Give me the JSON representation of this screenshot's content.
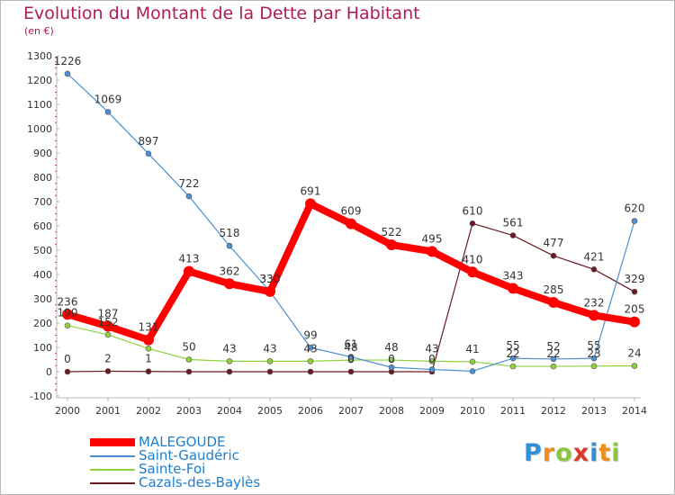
{
  "title": "Evolution du Montant de la Dette par Habitant",
  "subtitle": "(en €)",
  "logo": {
    "text": "Proxiti",
    "letters": [
      "P",
      "r",
      "o",
      "x",
      "i",
      "t",
      "i"
    ],
    "colors": [
      "#2f8fd8",
      "#f28c1e",
      "#8cc63f",
      "#d93a2b",
      "#2f8fd8",
      "#f28c1e",
      "#8cc63f"
    ]
  },
  "chart_data": {
    "type": "line",
    "title": "Evolution du Montant de la Dette par Habitant",
    "ylabel": "(en €)",
    "xlabel": "",
    "x": [
      "2000",
      "2001",
      "2002",
      "2003",
      "2004",
      "2005",
      "2006",
      "2007",
      "2008",
      "2009",
      "2010",
      "2011",
      "2012",
      "2013",
      "2014"
    ],
    "ylim": [
      -100,
      1300
    ],
    "yticks": [
      -100,
      0,
      100,
      200,
      300,
      400,
      500,
      600,
      700,
      800,
      900,
      1000,
      1100,
      1200,
      1300
    ],
    "grid": false,
    "legend_position": "bottom-left",
    "series": [
      {
        "name": "MALEGOUDE",
        "color": "#ff0000",
        "values": [
          236,
          187,
          131,
          413,
          362,
          330,
          691,
          609,
          522,
          495,
          410,
          343,
          285,
          232,
          205
        ],
        "labels": [
          "236",
          "187",
          "131",
          "413",
          "362",
          "330",
          "691",
          "609",
          "522",
          "495",
          "410",
          "343",
          "285",
          "232",
          "205"
        ]
      },
      {
        "name": "Saint-Gaudéric",
        "color": "#4a90d2",
        "values": [
          1226,
          1069,
          897,
          722,
          518,
          330,
          99,
          61,
          18,
          9,
          2,
          55,
          52,
          55,
          620
        ],
        "labels": [
          "1226",
          "1069",
          "897",
          "722",
          "518",
          "330",
          "99",
          "61",
          "",
          "",
          "",
          "55",
          "52",
          "55",
          "620"
        ]
      },
      {
        "name": "Sainte-Foi",
        "color": "#8ed23b",
        "values": [
          190,
          152,
          95,
          50,
          43,
          43,
          43,
          48,
          48,
          43,
          41,
          22,
          22,
          23,
          24
        ],
        "labels": [
          "190",
          "152",
          "",
          "50",
          "43",
          "43",
          "43",
          "48",
          "48",
          "43",
          "41",
          "22",
          "22",
          "23",
          "24"
        ]
      },
      {
        "name": "Cazals-des-Baylès",
        "color": "#6b1a23",
        "values": [
          0,
          2,
          1,
          0,
          0,
          0,
          0,
          0,
          0,
          0,
          610,
          561,
          477,
          421,
          329
        ],
        "labels": [
          "0",
          "2",
          "1",
          "",
          "",
          "",
          "",
          "0",
          "0",
          "0",
          "610",
          "561",
          "477",
          "421",
          "329"
        ]
      }
    ]
  }
}
